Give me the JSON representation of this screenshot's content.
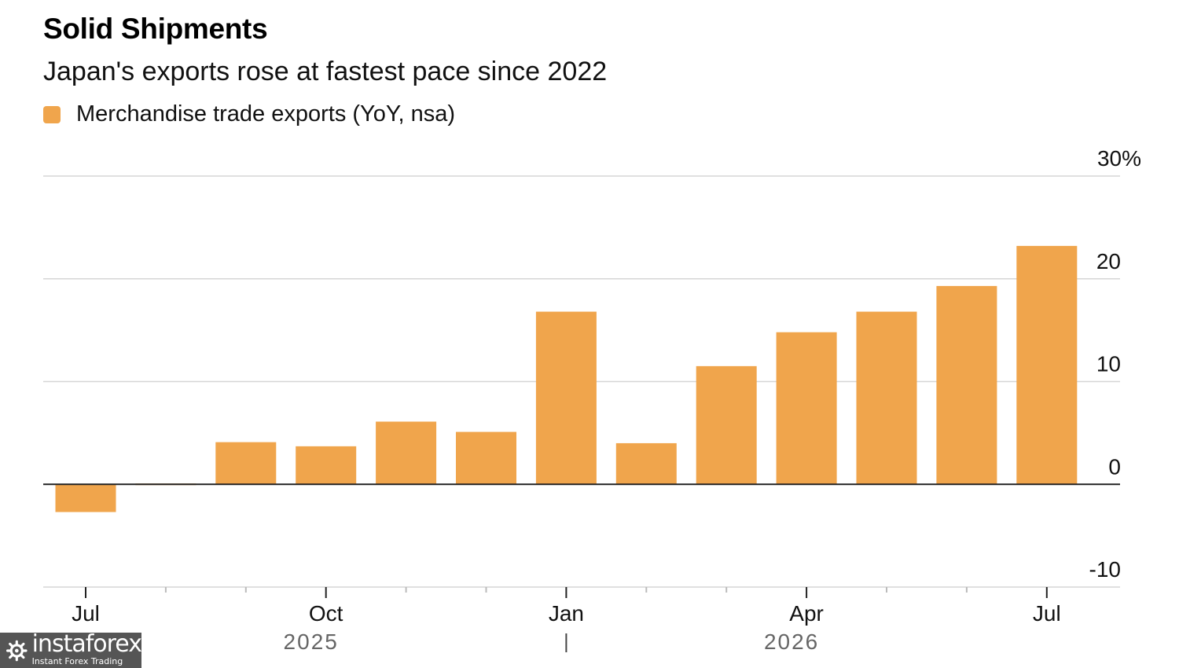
{
  "header": {
    "title": "Solid Shipments",
    "subtitle": "Japan's exports rose at fastest pace since 2022"
  },
  "watermark": {
    "brand": "instaforex",
    "tagline": "Instant Forex Trading"
  },
  "chart_data": {
    "type": "bar",
    "title": "Solid Shipments",
    "subtitle": "Japan's exports rose at fastest pace since 2022",
    "x": [
      "2025-07",
      "2025-08",
      "2025-09",
      "2025-10",
      "2025-11",
      "2025-12",
      "2026-01",
      "2026-02",
      "2026-03",
      "2026-04",
      "2026-05",
      "2026-06",
      "2026-07"
    ],
    "series": [
      {
        "name": "Merchandise trade exports (YoY, nsa)",
        "color": "#F0A54C",
        "values": [
          -2.7,
          -0.1,
          4.1,
          3.7,
          6.1,
          5.1,
          16.8,
          4.0,
          11.5,
          14.8,
          16.8,
          19.3,
          23.2
        ]
      }
    ],
    "ylim": [
      -10,
      30
    ],
    "y_ticks": [
      -10,
      0,
      10,
      20,
      30
    ],
    "y_tick_labels": [
      "-10",
      "0",
      "10",
      "20",
      "30%"
    ],
    "x_tick_labels": [
      {
        "label": "Jul",
        "at": "2025-07"
      },
      {
        "label": "Oct",
        "at": "2025-10"
      },
      {
        "label": "Jan",
        "at": "2026-01"
      },
      {
        "label": "Apr",
        "at": "2026-04"
      },
      {
        "label": "Jul",
        "at": "2026-07"
      }
    ],
    "x_year_labels": [
      {
        "label": "2025",
        "at": "2025-10"
      },
      {
        "label": "2026",
        "at": "2026-04"
      }
    ],
    "y_axis_position": "right",
    "grid": true,
    "legend_position": "top-left"
  }
}
